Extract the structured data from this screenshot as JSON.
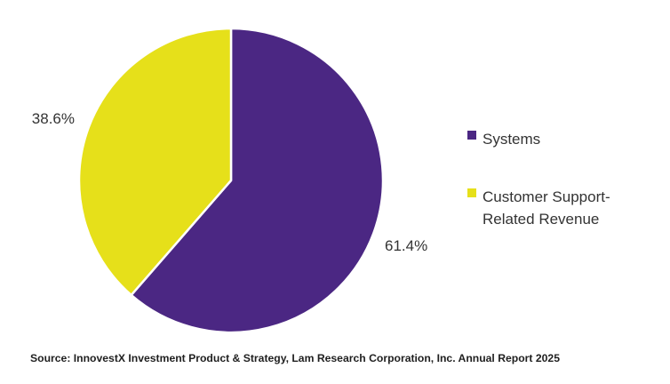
{
  "chart_data": {
    "type": "pie",
    "title": "",
    "start_angle_deg": 0,
    "direction": "clockwise",
    "slices": [
      {
        "name": "Systems",
        "value": 61.4,
        "label": "61.4%",
        "color": "#4b2783"
      },
      {
        "name": "Customer Support-Related Revenue",
        "value": 38.6,
        "label": "38.6%",
        "color": "#e6e01a"
      }
    ],
    "legend": {
      "placement": "right",
      "entries": [
        {
          "lines": [
            "Systems"
          ],
          "color": "#4b2783"
        },
        {
          "lines": [
            "Customer Support-",
            "Related Revenue"
          ],
          "color": "#e6e01a"
        }
      ]
    }
  },
  "source": "Source: InnovestX Investment Product & Strategy, Lam Research Corporation, Inc.  Annual Report 2025"
}
